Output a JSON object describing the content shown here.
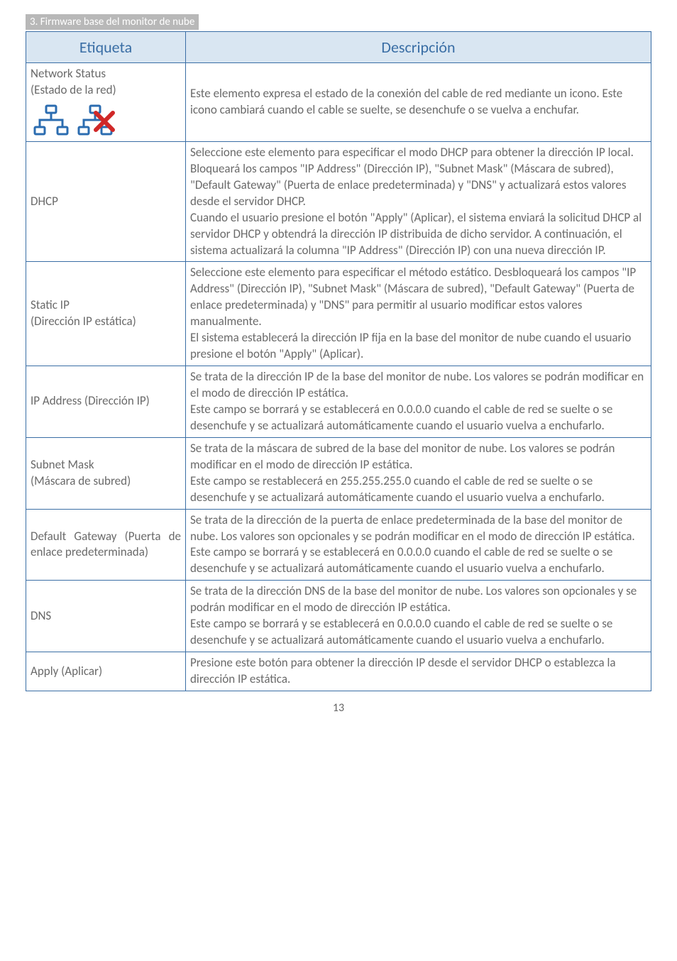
{
  "breadcrumb": "3. Firmware base del monitor de nube",
  "page_number": "13",
  "table": {
    "header": {
      "label": "Etiqueta",
      "desc": "Descripción"
    },
    "header_bg": "#d9e6f2",
    "header_color": "#3a6ea5",
    "border_color": "#3a6ea5",
    "rows": [
      {
        "label_lines": [
          "Network Status",
          "(Estado de la red)"
        ],
        "has_icons": true,
        "icon_color": "#2b6cb0",
        "icon_x_color": "#d02828",
        "desc": "Este elemento expresa el estado de la conexión del cable de red mediante un icono. Este icono cambiará cuando el cable se suelte, se desenchufe o se vuelva a enchufar."
      },
      {
        "label_lines": [
          "DHCP"
        ],
        "desc": "Seleccione este elemento para especificar el modo DHCP para obtener la dirección IP local. Bloqueará los campos \"IP Address\" (Dirección IP), \"Subnet Mask\" (Máscara de subred), \"Default Gateway\" (Puerta de enlace predeterminada) y \"DNS\" y actualizará estos valores desde el servidor DHCP.\nCuando el usuario presione el botón \"Apply\" (Aplicar), el sistema enviará la solicitud DHCP al servidor DHCP y obtendrá la dirección IP distribuida de dicho servidor. A continuación, el sistema actualizará la columna \"IP Address\" (Dirección IP) con una nueva dirección IP."
      },
      {
        "label_lines": [
          "Static IP",
          "(Dirección IP estática)"
        ],
        "desc": "Seleccione este elemento para especificar el método estático. Desbloqueará los campos \"IP Address\" (Dirección IP), \"Subnet Mask\" (Máscara de subred), \"Default Gateway\" (Puerta de enlace predeterminada) y \"DNS\" para permitir al usuario modificar estos valores manualmente.\nEl sistema establecerá la dirección IP fija en la base del monitor de nube cuando el usuario presione el botón \"Apply\" (Aplicar)."
      },
      {
        "label_lines": [
          "IP Address (Dirección IP)"
        ],
        "desc": "Se trata de la dirección IP de la base del monitor de nube. Los valores se podrán modificar en el modo de dirección IP estática.\nEste campo se borrará y se establecerá en 0.0.0.0 cuando el cable de red se suelte o se desenchufe y se actualizará automáticamente cuando el usuario vuelva a enchufarlo."
      },
      {
        "label_lines": [
          "Subnet Mask",
          "(Máscara de subred)"
        ],
        "desc": "Se trata de la máscara de subred de la base del monitor de nube. Los valores se podrán modificar en el modo de dirección IP estática.\nEste campo se restablecerá en 255.255.255.0 cuando el cable de red se suelte o se desenchufe y se actualizará automáticamente cuando el usuario vuelva a enchufarlo."
      },
      {
        "label_lines": [
          "Default Gateway (Puerta de enlace predeterminada)"
        ],
        "justify": true,
        "desc": "Se trata de la dirección de la puerta de enlace predeterminada de la base del monitor de nube. Los valores son opcionales y se podrán modificar en el modo de dirección IP estática.\nEste campo se borrará y se establecerá en 0.0.0.0 cuando el cable de red se suelte o se desenchufe y se actualizará automáticamente cuando el usuario vuelva a enchufarlo."
      },
      {
        "label_lines": [
          "DNS"
        ],
        "desc": "Se trata de la dirección DNS de la base del monitor de nube. Los valores son opcionales y se podrán modificar en el modo de dirección IP estática.\nEste campo se borrará y se establecerá en 0.0.0.0 cuando el cable de red se suelte o se desenchufe y se actualizará automáticamente cuando el usuario vuelva a enchufarlo."
      },
      {
        "label_lines": [
          "Apply (Aplicar)"
        ],
        "desc": "Presione este botón para obtener la dirección IP desde el servidor DHCP o establezca la dirección IP estática."
      }
    ]
  }
}
